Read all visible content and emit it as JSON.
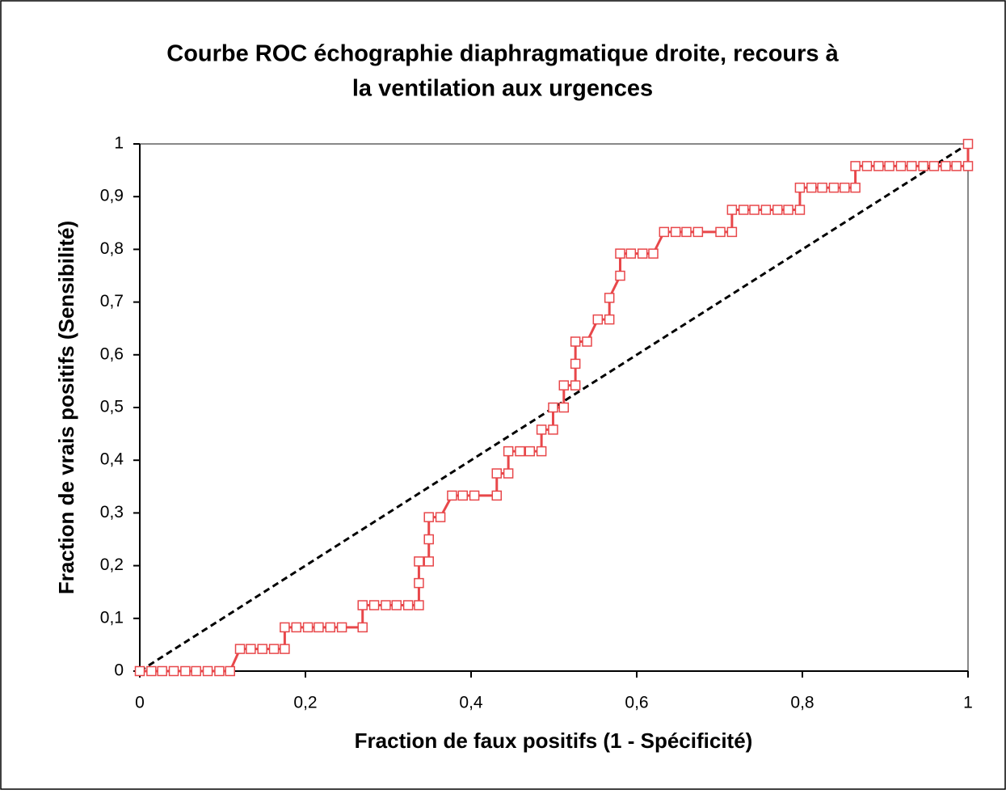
{
  "chart_data": {
    "type": "line",
    "title": [
      "Courbe ROC échographie diaphragmatique droite, recours à",
      "la ventilation aux urgences"
    ],
    "xlabel": "Fraction de faux positifs (1 - Spécificité)",
    "ylabel": "Fraction de vrais positifs (Sensibilité)",
    "xlim": [
      0,
      1
    ],
    "ylim": [
      0,
      1
    ],
    "xticks": [
      0,
      {
        "value": 0.2,
        "label": "0,2"
      },
      {
        "value": 0.4,
        "label": "0,4"
      },
      {
        "value": 0.6,
        "label": "0,6"
      },
      {
        "value": 0.8,
        "label": "0,8"
      },
      1
    ],
    "yticks": [
      0,
      {
        "value": 0.1,
        "label": "0,1"
      },
      {
        "value": 0.2,
        "label": "0,2"
      },
      {
        "value": 0.3,
        "label": "0,3"
      },
      {
        "value": 0.4,
        "label": "0,4"
      },
      {
        "value": 0.5,
        "label": "0,5"
      },
      {
        "value": 0.6,
        "label": "0,6"
      },
      {
        "value": 0.7,
        "label": "0,7"
      },
      {
        "value": 0.8,
        "label": "0,8"
      },
      {
        "value": 0.9,
        "label": "0,9"
      },
      1
    ],
    "series": [
      {
        "color": "#e8474a",
        "x": [
          0,
          0.014,
          0.027,
          0.041,
          0.055,
          0.068,
          0.082,
          0.096,
          0.109,
          0.121,
          0.134,
          0.148,
          0.162,
          0.175,
          0.175,
          0.189,
          0.203,
          0.216,
          0.23,
          0.244,
          0.269,
          0.269,
          0.283,
          0.297,
          0.31,
          0.324,
          0.337,
          0.337,
          0.337,
          0.349,
          0.349,
          0.349,
          0.363,
          0.377,
          0.39,
          0.404,
          0.431,
          0.431,
          0.445,
          0.445,
          0.459,
          0.471,
          0.485,
          0.485,
          0.499,
          0.499,
          0.512,
          0.512,
          0.526,
          0.526,
          0.526,
          0.54,
          0.553,
          0.567,
          0.567,
          0.58,
          0.58,
          0.593,
          0.607,
          0.62,
          0.633,
          0.647,
          0.66,
          0.674,
          0.701,
          0.715,
          0.715,
          0.729,
          0.742,
          0.756,
          0.77,
          0.783,
          0.797,
          0.797,
          0.811,
          0.824,
          0.838,
          0.851,
          0.864,
          0.864,
          0.878,
          0.892,
          0.905,
          0.919,
          0.932,
          0.946,
          0.959,
          0.973,
          0.986,
          1,
          1
        ],
        "values": [
          0,
          0,
          0,
          0,
          0,
          0,
          0,
          0,
          0,
          0.042,
          0.042,
          0.042,
          0.042,
          0.042,
          0.083,
          0.083,
          0.083,
          0.083,
          0.083,
          0.083,
          0.083,
          0.125,
          0.125,
          0.125,
          0.125,
          0.125,
          0.125,
          0.167,
          0.208,
          0.208,
          0.25,
          0.292,
          0.292,
          0.333,
          0.333,
          0.333,
          0.333,
          0.375,
          0.375,
          0.417,
          0.417,
          0.417,
          0.417,
          0.458,
          0.458,
          0.5,
          0.5,
          0.542,
          0.542,
          0.583,
          0.625,
          0.625,
          0.667,
          0.667,
          0.708,
          0.75,
          0.792,
          0.792,
          0.792,
          0.792,
          0.833,
          0.833,
          0.833,
          0.833,
          0.833,
          0.833,
          0.875,
          0.875,
          0.875,
          0.875,
          0.875,
          0.875,
          0.875,
          0.917,
          0.917,
          0.917,
          0.917,
          0.917,
          0.917,
          0.958,
          0.958,
          0.958,
          0.958,
          0.958,
          0.958,
          0.958,
          0.958,
          0.958,
          0.958,
          0.958,
          1
        ]
      },
      {
        "color": "#000000",
        "dashed": true,
        "markers": false,
        "x": [
          0,
          1
        ],
        "values": [
          0,
          1
        ]
      }
    ]
  }
}
